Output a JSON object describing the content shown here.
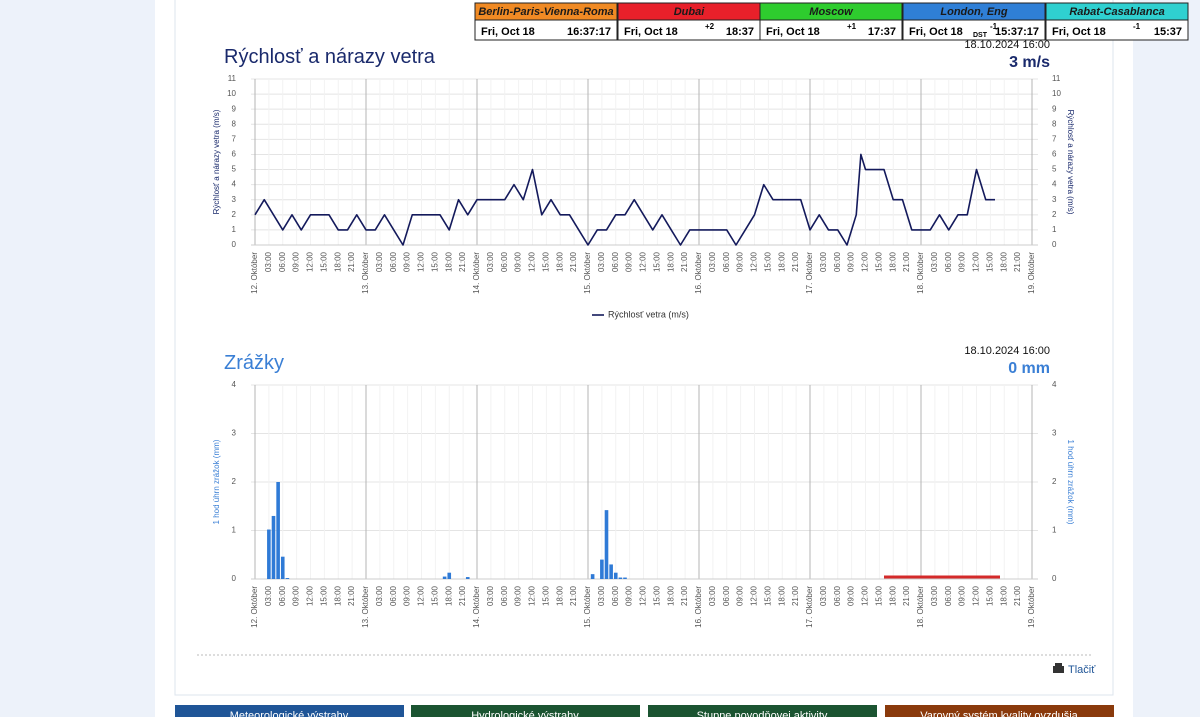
{
  "clock": {
    "cities": [
      {
        "name": "Berlin-Paris-Vienna-Roma",
        "color": "#f08a24",
        "date": "Fri, Oct 18",
        "time": "16:37:17"
      },
      {
        "name": "Dubai",
        "color": "#e8202a",
        "offset": "+2",
        "date": "Fri, Oct 18",
        "time": "18:37"
      },
      {
        "name": "Moscow",
        "color": "#2ecc2e",
        "offset": "+1",
        "date": "Fri, Oct 18",
        "time": "17:37"
      },
      {
        "name": "London, Eng",
        "color": "#2f7fd6",
        "offset": "-1",
        "dst": "DST",
        "date": "Fri, Oct 18",
        "time": "15:37:17"
      },
      {
        "name": "Rabat-Casablanca",
        "color": "#2fd0d0",
        "offset": "-1",
        "date": "Fri, Oct 18",
        "time": "15:37"
      }
    ]
  },
  "chart_data": [
    {
      "type": "line",
      "title": "Rýchlosť a nárazy vetra",
      "timestamp": "18.10.2024 16:00",
      "current": "3 m/s",
      "y_label": "Rýchlosť a nárazy vetra (m/s)",
      "title_color": "#1a2a6c",
      "grid": true,
      "legend": "bottom",
      "x": [
        0,
        2,
        4,
        6,
        8,
        10,
        12,
        14,
        16,
        18,
        20,
        22,
        24,
        26,
        28,
        30,
        32,
        34,
        36,
        38,
        40,
        42,
        44,
        46,
        48,
        50,
        52,
        54,
        56,
        58,
        60,
        62,
        64,
        66,
        68,
        70,
        72,
        74,
        76,
        78,
        80,
        82,
        84,
        86,
        88,
        90,
        92,
        94,
        96,
        98,
        100,
        102,
        104,
        106,
        108,
        110,
        112,
        114,
        116,
        118,
        120,
        122,
        124,
        126,
        128,
        130,
        131,
        132,
        134,
        136,
        138,
        140,
        142,
        144,
        146,
        148,
        150,
        152,
        154,
        156,
        158,
        160
      ],
      "series": [
        {
          "name": "Rýchlosť vetra (m/s)",
          "color": "#141a5c",
          "values": [
            2,
            3,
            2,
            1,
            2,
            1,
            2,
            2,
            2,
            1,
            1,
            2,
            1,
            1,
            2,
            1,
            0,
            2,
            2,
            2,
            2,
            1,
            3,
            2,
            3,
            3,
            3,
            3,
            4,
            3,
            5,
            2,
            3,
            2,
            2,
            1,
            0,
            1,
            1,
            2,
            2,
            3,
            2,
            1,
            2,
            1,
            0,
            1,
            1,
            1,
            1,
            1,
            0,
            1,
            2,
            4,
            3,
            3,
            3,
            3,
            1,
            2,
            1,
            1,
            0,
            2,
            6,
            5,
            5,
            5,
            3,
            3,
            1,
            1,
            1,
            2,
            1,
            2,
            2,
            5,
            3,
            3
          ]
        }
      ],
      "xlim": [
        0,
        168
      ],
      "ylim": [
        0,
        11
      ],
      "yticks": [
        0,
        1,
        2,
        3,
        4,
        5,
        6,
        7,
        8,
        9,
        10,
        11
      ],
      "xticks": [
        {
          "value": 0,
          "label": "12. Október"
        },
        {
          "value": 3,
          "label": "03:00"
        },
        {
          "value": 6,
          "label": "06:00"
        },
        {
          "value": 9,
          "label": "09:00"
        },
        {
          "value": 12,
          "label": "12:00"
        },
        {
          "value": 15,
          "label": "15:00"
        },
        {
          "value": 18,
          "label": "18:00"
        },
        {
          "value": 21,
          "label": "21:00"
        },
        {
          "value": 24,
          "label": "13. Október"
        },
        {
          "value": 27,
          "label": "03:00"
        },
        {
          "value": 30,
          "label": "06:00"
        },
        {
          "value": 33,
          "label": "09:00"
        },
        {
          "value": 36,
          "label": "12:00"
        },
        {
          "value": 39,
          "label": "15:00"
        },
        {
          "value": 42,
          "label": "18:00"
        },
        {
          "value": 45,
          "label": "21:00"
        },
        {
          "value": 48,
          "label": "14. Október"
        },
        {
          "value": 51,
          "label": "03:00"
        },
        {
          "value": 54,
          "label": "06:00"
        },
        {
          "value": 57,
          "label": "09:00"
        },
        {
          "value": 60,
          "label": "12:00"
        },
        {
          "value": 63,
          "label": "15:00"
        },
        {
          "value": 66,
          "label": "18:00"
        },
        {
          "value": 69,
          "label": "21:00"
        },
        {
          "value": 72,
          "label": "15. Október"
        },
        {
          "value": 75,
          "label": "03:00"
        },
        {
          "value": 78,
          "label": "06:00"
        },
        {
          "value": 81,
          "label": "09:00"
        },
        {
          "value": 84,
          "label": "12:00"
        },
        {
          "value": 87,
          "label": "15:00"
        },
        {
          "value": 90,
          "label": "18:00"
        },
        {
          "value": 93,
          "label": "21:00"
        },
        {
          "value": 96,
          "label": "16. Október"
        },
        {
          "value": 99,
          "label": "03:00"
        },
        {
          "value": 102,
          "label": "06:00"
        },
        {
          "value": 105,
          "label": "09:00"
        },
        {
          "value": 108,
          "label": "12:00"
        },
        {
          "value": 111,
          "label": "15:00"
        },
        {
          "value": 114,
          "label": "18:00"
        },
        {
          "value": 117,
          "label": "21:00"
        },
        {
          "value": 120,
          "label": "17. Október"
        },
        {
          "value": 123,
          "label": "03:00"
        },
        {
          "value": 126,
          "label": "06:00"
        },
        {
          "value": 129,
          "label": "09:00"
        },
        {
          "value": 132,
          "label": "12:00"
        },
        {
          "value": 135,
          "label": "15:00"
        },
        {
          "value": 138,
          "label": "18:00"
        },
        {
          "value": 141,
          "label": "21:00"
        },
        {
          "value": 144,
          "label": "18. Október"
        },
        {
          "value": 147,
          "label": "03:00"
        },
        {
          "value": 150,
          "label": "06:00"
        },
        {
          "value": 153,
          "label": "09:00"
        },
        {
          "value": 156,
          "label": "12:00"
        },
        {
          "value": 159,
          "label": "15:00"
        },
        {
          "value": 162,
          "label": "18:00"
        },
        {
          "value": 165,
          "label": "21:00"
        },
        {
          "value": 168,
          "label": "19. Október"
        }
      ]
    },
    {
      "type": "bar",
      "title": "Zrážky",
      "timestamp": "18.10.2024 16:00",
      "current": "0 mm",
      "y_label": "1 hod úhrn zrážok (mm)",
      "title_color": "#3a7fd5",
      "grid": true,
      "color": "#2f7ad6",
      "x": [
        3,
        4,
        5,
        6,
        7,
        41,
        42,
        46,
        73,
        75,
        76,
        77,
        78,
        79,
        80
      ],
      "values": [
        1.02,
        1.3,
        2.0,
        0.46,
        0.02,
        0.05,
        0.13,
        0.04,
        0.1,
        0.4,
        1.42,
        0.3,
        0.13,
        0.03,
        0.03
      ],
      "xlim": [
        0,
        168
      ],
      "ylim": [
        0,
        4
      ],
      "yticks": [
        0,
        1,
        2,
        3,
        4
      ],
      "xticks": [
        {
          "value": 0,
          "label": "12. Október"
        },
        {
          "value": 3,
          "label": "03:00"
        },
        {
          "value": 6,
          "label": "06:00"
        },
        {
          "value": 9,
          "label": "09:00"
        },
        {
          "value": 12,
          "label": "12:00"
        },
        {
          "value": 15,
          "label": "15:00"
        },
        {
          "value": 18,
          "label": "18:00"
        },
        {
          "value": 21,
          "label": "21:00"
        },
        {
          "value": 24,
          "label": "13. Október"
        },
        {
          "value": 27,
          "label": "03:00"
        },
        {
          "value": 30,
          "label": "06:00"
        },
        {
          "value": 33,
          "label": "09:00"
        },
        {
          "value": 36,
          "label": "12:00"
        },
        {
          "value": 39,
          "label": "15:00"
        },
        {
          "value": 42,
          "label": "18:00"
        },
        {
          "value": 45,
          "label": "21:00"
        },
        {
          "value": 48,
          "label": "14. Október"
        },
        {
          "value": 51,
          "label": "03:00"
        },
        {
          "value": 54,
          "label": "06:00"
        },
        {
          "value": 57,
          "label": "09:00"
        },
        {
          "value": 60,
          "label": "12:00"
        },
        {
          "value": 63,
          "label": "15:00"
        },
        {
          "value": 66,
          "label": "18:00"
        },
        {
          "value": 69,
          "label": "21:00"
        },
        {
          "value": 72,
          "label": "15. Október"
        },
        {
          "value": 75,
          "label": "03:00"
        },
        {
          "value": 78,
          "label": "06:00"
        },
        {
          "value": 81,
          "label": "09:00"
        },
        {
          "value": 84,
          "label": "12:00"
        },
        {
          "value": 87,
          "label": "15:00"
        },
        {
          "value": 90,
          "label": "18:00"
        },
        {
          "value": 93,
          "label": "21:00"
        },
        {
          "value": 96,
          "label": "16. Október"
        },
        {
          "value": 99,
          "label": "03:00"
        },
        {
          "value": 102,
          "label": "06:00"
        },
        {
          "value": 105,
          "label": "09:00"
        },
        {
          "value": 108,
          "label": "12:00"
        },
        {
          "value": 111,
          "label": "15:00"
        },
        {
          "value": 114,
          "label": "18:00"
        },
        {
          "value": 117,
          "label": "21:00"
        },
        {
          "value": 120,
          "label": "17. Október"
        },
        {
          "value": 123,
          "label": "03:00"
        },
        {
          "value": 126,
          "label": "06:00"
        },
        {
          "value": 129,
          "label": "09:00"
        },
        {
          "value": 132,
          "label": "12:00"
        },
        {
          "value": 135,
          "label": "15:00"
        },
        {
          "value": 138,
          "label": "18:00"
        },
        {
          "value": 141,
          "label": "21:00"
        },
        {
          "value": 144,
          "label": "18. Október"
        },
        {
          "value": 147,
          "label": "03:00"
        },
        {
          "value": 150,
          "label": "06:00"
        },
        {
          "value": 153,
          "label": "09:00"
        },
        {
          "value": 156,
          "label": "12:00"
        },
        {
          "value": 159,
          "label": "15:00"
        },
        {
          "value": 162,
          "label": "18:00"
        },
        {
          "value": 165,
          "label": "21:00"
        },
        {
          "value": 168,
          "label": "19. Október"
        }
      ]
    }
  ],
  "print": "Tlačiť",
  "buttons": [
    {
      "label": "Meteorologické výstrahy",
      "color": "#1f5597"
    },
    {
      "label": "Hydrologické výstrahy",
      "color": "#1b5431"
    },
    {
      "label": "Stupne povodňovej aktivity",
      "color": "#1b5431"
    },
    {
      "label": "Varovný systém kvality ovzdušia",
      "color": "#8a3a0c"
    }
  ]
}
